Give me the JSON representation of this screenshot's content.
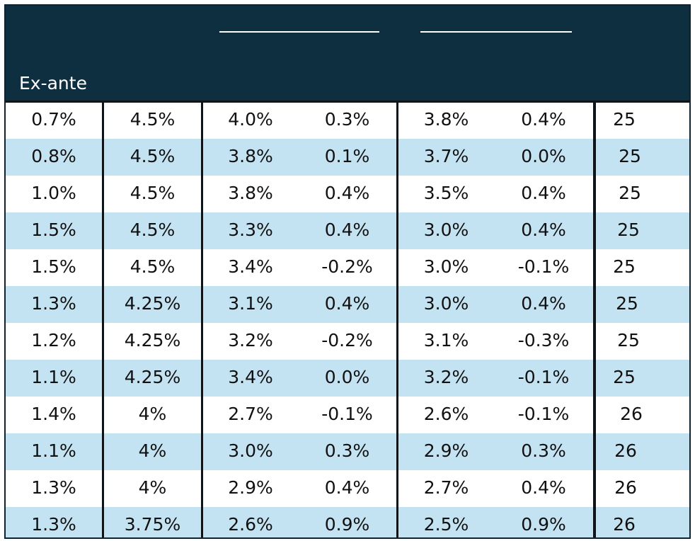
{
  "header": {
    "label": "Ex-ante"
  },
  "colors": {
    "header_bg": "#0e2f40",
    "row_stripe": "#c4e3f2",
    "row_plain": "#ffffff",
    "text": "#111111",
    "header_text": "#ffffff"
  },
  "rows": [
    [
      "0.7%",
      "4.5%",
      "4.0%",
      "0.3%",
      "3.8%",
      "0.4%",
      "25"
    ],
    [
      "0.8%",
      "4.5%",
      "3.8%",
      "0.1%",
      "3.7%",
      "0.0%",
      "25"
    ],
    [
      "1.0%",
      "4.5%",
      "3.8%",
      "0.4%",
      "3.5%",
      "0.4%",
      "25"
    ],
    [
      "1.5%",
      "4.5%",
      "3.3%",
      "0.4%",
      "3.0%",
      "0.4%",
      "25"
    ],
    [
      "1.5%",
      "4.5%",
      "3.4%",
      "-0.2%",
      "3.0%",
      "-0.1%",
      "25"
    ],
    [
      "1.3%",
      "4.25%",
      "3.1%",
      "0.4%",
      "3.0%",
      "0.4%",
      "25"
    ],
    [
      "1.2%",
      "4.25%",
      "3.2%",
      "-0.2%",
      "3.1%",
      "-0.3%",
      "25"
    ],
    [
      "1.1%",
      "4.25%",
      "3.4%",
      "0.0%",
      "3.2%",
      "-0.1%",
      "25"
    ],
    [
      "1.4%",
      "4%",
      "2.7%",
      "-0.1%",
      "2.6%",
      "-0.1%",
      "26"
    ],
    [
      "1.1%",
      "4%",
      "3.0%",
      "0.3%",
      "2.9%",
      "0.3%",
      "26"
    ],
    [
      "1.3%",
      "4%",
      "2.9%",
      "0.4%",
      "2.7%",
      "0.4%",
      "26"
    ],
    [
      "1.3%",
      "3.75%",
      "2.6%",
      "0.9%",
      "2.5%",
      "0.9%",
      "26"
    ]
  ]
}
